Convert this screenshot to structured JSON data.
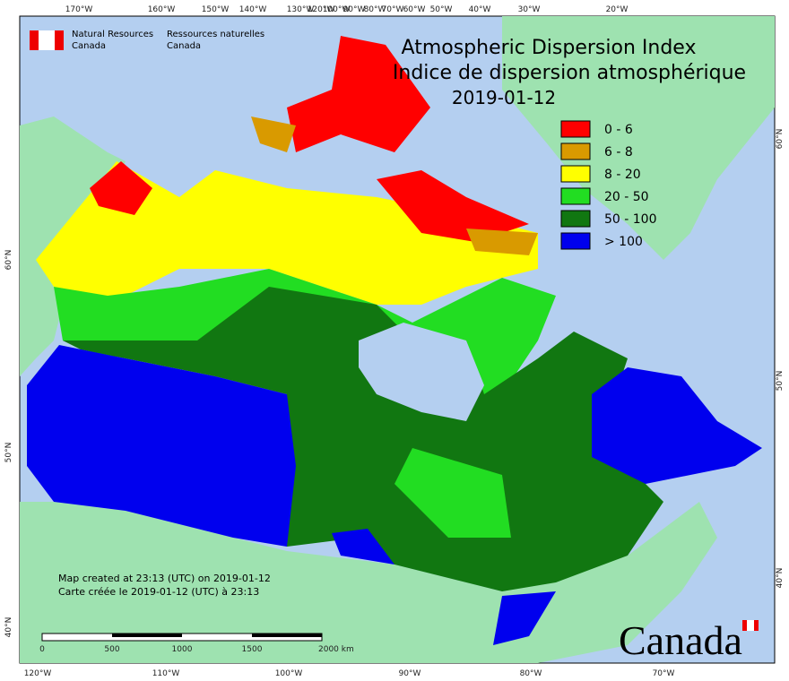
{
  "header": {
    "agency_en": "Natural Resources",
    "agency_en_2": "Canada",
    "agency_fr": "Ressources naturelles",
    "agency_fr_2": "Canada"
  },
  "title": {
    "en": "Atmospheric Dispersion Index",
    "fr": "Indice de dispersion atmosphérique",
    "date": "2019-01-12"
  },
  "legend": [
    {
      "label": "0 - 6",
      "color": "#ff0000"
    },
    {
      "label": "6 - 8",
      "color": "#d99a00"
    },
    {
      "label": "8 - 20",
      "color": "#ffff00"
    },
    {
      "label": "20 - 50",
      "color": "#22dd22"
    },
    {
      "label": "50 - 100",
      "color": "#117711"
    },
    {
      "label": "> 100",
      "color": "#0000ee"
    }
  ],
  "top_labels": [
    "170°W",
    "160°W",
    "150°W",
    "140°W",
    "130°W",
    "120°W",
    "100°W",
    "90°W",
    "80°W",
    "70°W",
    "60°W",
    "50°W",
    "40°W",
    "30°W",
    "20°W"
  ],
  "bottom_labels": [
    "120°W",
    "110°W",
    "100°W",
    "90°W",
    "80°W",
    "70°W"
  ],
  "left_labels": [
    "60°N",
    "50°N",
    "40°N"
  ],
  "right_labels": [
    "60°N",
    "50°N",
    "40°N"
  ],
  "notes": {
    "en": "Map created at 23:13 (UTC) on 2019-01-12",
    "fr": "Carte créée le 2019-01-12 (UTC) à 23:13"
  },
  "scale": [
    "0",
    "500",
    "1000",
    "1500",
    "2000 km"
  ],
  "wordmark": "Canada"
}
